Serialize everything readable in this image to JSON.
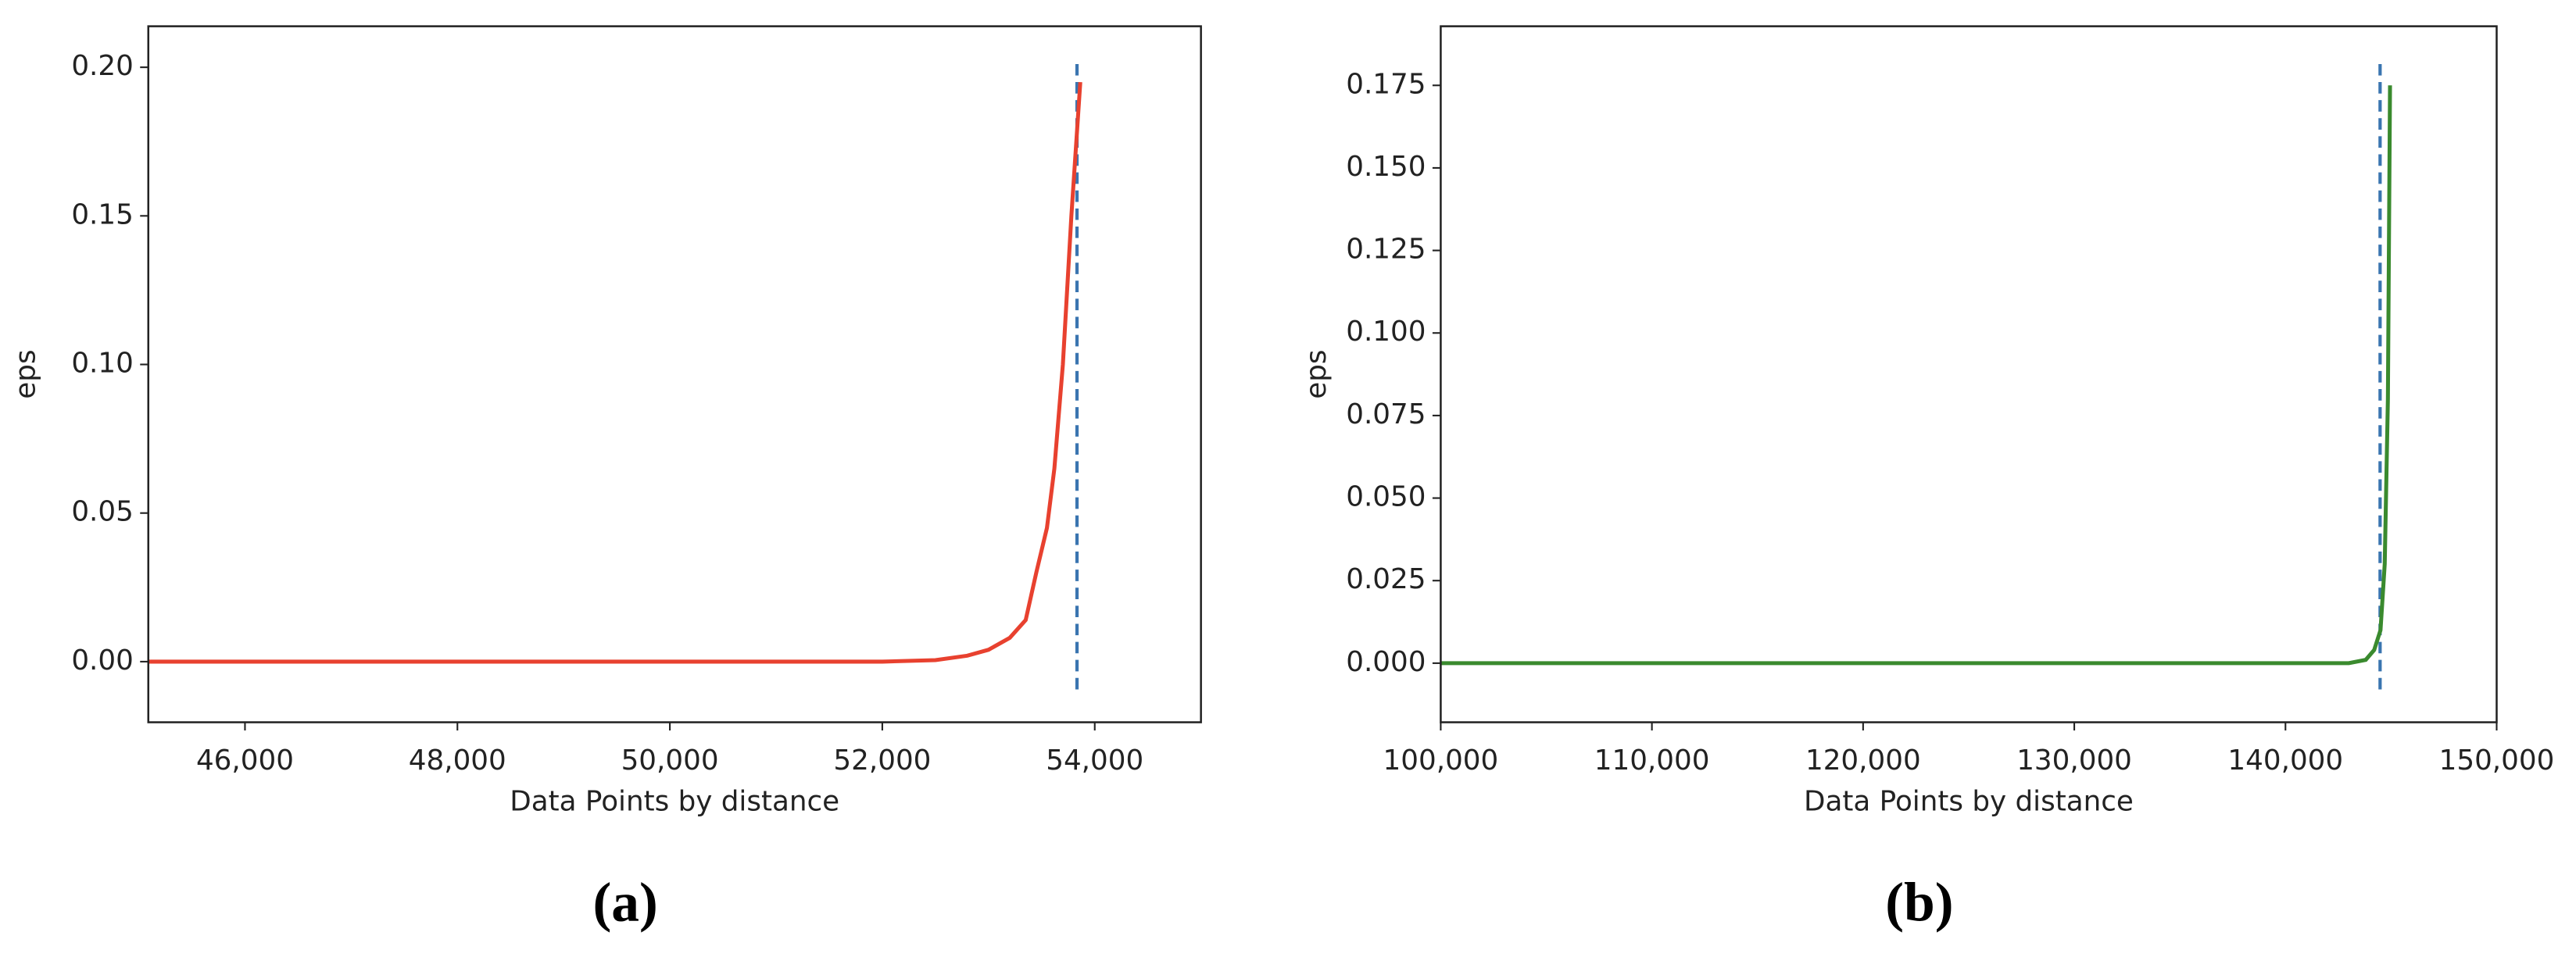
{
  "chart_data": [
    {
      "type": "line",
      "subplot_label": "(a)",
      "xlabel": "Data Points by distance",
      "ylabel": "eps",
      "color": "#e8412f",
      "vline_color": "#3a75b0",
      "x": [
        45090,
        52000,
        52500,
        52800,
        53000,
        53200,
        53350,
        53450,
        53550,
        53620,
        53700,
        53780,
        53864
      ],
      "values": [
        0,
        0,
        0.0005,
        0.002,
        0.004,
        0.008,
        0.014,
        0.03,
        0.045,
        0.065,
        0.1,
        0.15,
        0.195
      ],
      "vline": 53833,
      "xlim": [
        45090,
        55000
      ],
      "ylim": [
        -0.0204,
        0.2138
      ],
      "xticks": [
        {
          "value": 46000,
          "label": "46,000"
        },
        {
          "value": 48000,
          "label": "48,000"
        },
        {
          "value": 50000,
          "label": "50,000"
        },
        {
          "value": 52000,
          "label": "52,000"
        },
        {
          "value": 54000,
          "label": "54,000"
        }
      ],
      "yticks": [
        {
          "value": 0,
          "label": "0.00"
        },
        {
          "value": 0.05,
          "label": "0.05"
        },
        {
          "value": 0.1,
          "label": "0.10"
        },
        {
          "value": 0.15,
          "label": "0.15"
        },
        {
          "value": 0.2,
          "label": "0.20"
        }
      ]
    },
    {
      "type": "line",
      "subplot_label": "(b)",
      "xlabel": "Data Points by distance",
      "ylabel": "eps",
      "color": "#3a8a2e",
      "vline_color": "#3a75b0",
      "x": [
        100000,
        143000,
        143800,
        144200,
        144500,
        144700,
        144850,
        144950
      ],
      "values": [
        0,
        0,
        0.001,
        0.004,
        0.01,
        0.03,
        0.08,
        0.175
      ],
      "vline": 144480,
      "xlim": [
        100000,
        150000
      ],
      "ylim": [
        -0.0179,
        0.1929
      ],
      "xticks": [
        {
          "value": 100000,
          "label": "100,000"
        },
        {
          "value": 110000,
          "label": "110,000"
        },
        {
          "value": 120000,
          "label": "120,000"
        },
        {
          "value": 130000,
          "label": "130,000"
        },
        {
          "value": 140000,
          "label": "140,000"
        },
        {
          "value": 150000,
          "label": "150,000"
        }
      ],
      "yticks": [
        {
          "value": 0,
          "label": "0.000"
        },
        {
          "value": 0.025,
          "label": "0.025"
        },
        {
          "value": 0.05,
          "label": "0.050"
        },
        {
          "value": 0.075,
          "label": "0.075"
        },
        {
          "value": 0.1,
          "label": "0.100"
        },
        {
          "value": 0.125,
          "label": "0.125"
        },
        {
          "value": 0.15,
          "label": "0.150"
        },
        {
          "value": 0.175,
          "label": "0.175"
        }
      ]
    }
  ]
}
